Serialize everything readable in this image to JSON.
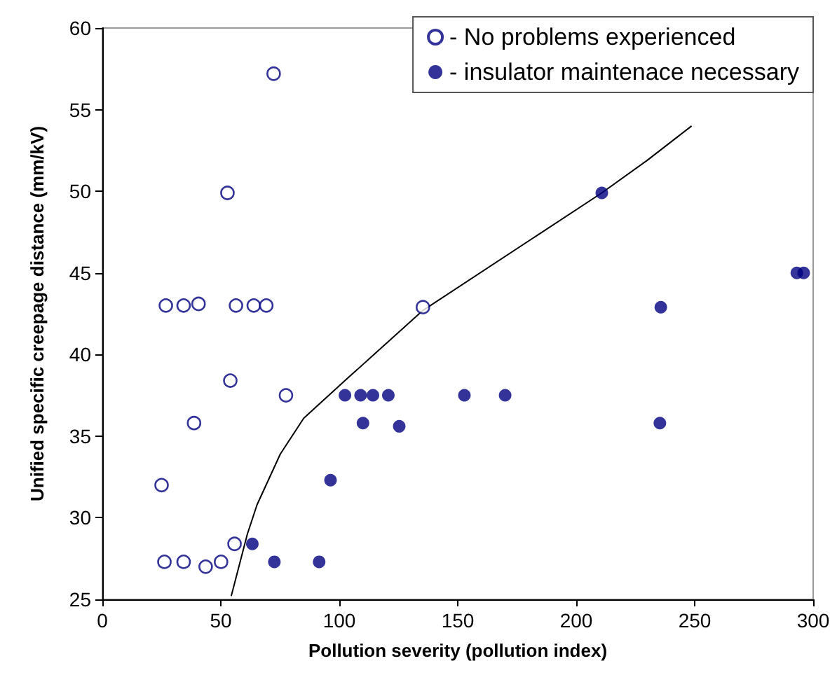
{
  "chart_data": {
    "type": "scatter",
    "xlabel": "Pollution severity (pollution index)",
    "ylabel": "Unified specific creepage distance (mm/kV)",
    "xlim": [
      0,
      300
    ],
    "ylim": [
      25,
      60
    ],
    "xticks": [
      0,
      50,
      100,
      150,
      200,
      250,
      300
    ],
    "yticks": [
      25,
      30,
      35,
      40,
      45,
      50,
      55,
      60
    ],
    "grid": false,
    "legend": "top right",
    "marker": "circle",
    "series": [
      {
        "name": "- No problems experienced",
        "color": "#000080",
        "x": [
          72.3,
          52.8,
          26.8,
          34.3,
          40.6,
          56.4,
          63.9,
          69.2,
          54,
          77.5,
          38.7,
          25,
          26.2,
          34.3,
          43.6,
          50.1,
          55.8,
          135.3
        ],
        "values": [
          57.2,
          49.9,
          43,
          43,
          43.1,
          43,
          43,
          43,
          38.4,
          37.5,
          35.8,
          32,
          27.3,
          27.3,
          27,
          27.3,
          28.4,
          42.9
        ]
      },
      {
        "name": "- insulator maintenace necessary",
        "color": "#000080",
        "x": [
          210.8,
          293.1,
          296,
          235.7,
          102.4,
          109,
          114.2,
          120.7,
          152.8,
          170,
          110,
          125.3,
          235.3,
          96.3,
          63.3,
          72.6,
          91.5
        ],
        "values": [
          49.9,
          45,
          45,
          42.9,
          37.5,
          37.5,
          37.5,
          37.5,
          37.5,
          37.5,
          35.8,
          35.6,
          35.8,
          32.3,
          28.4,
          27.3,
          27.3
        ]
      },
      {
        "type": "line",
        "color": "#000000",
        "marker": "none",
        "x": [
          54.4,
          61.2,
          65.3,
          75.1,
          85,
          102.4,
          135.3,
          210.8,
          230,
          248.7
        ],
        "values": [
          25.2,
          29,
          30.8,
          33.9,
          36.1,
          38.4,
          42.7,
          49.9,
          51.9,
          54
        ]
      }
    ]
  }
}
